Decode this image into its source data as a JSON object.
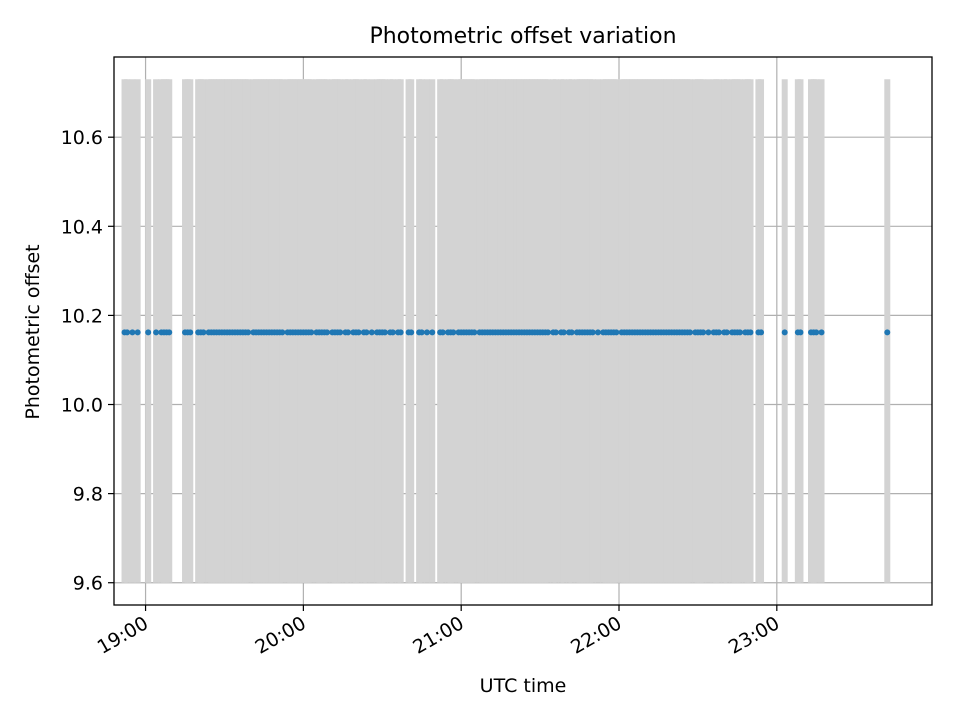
{
  "chart_data": {
    "type": "scatter",
    "title": "Photometric offset variation",
    "xlabel": "UTC time",
    "ylabel": "Photometric offset",
    "x_tick_labels": [
      "19:00",
      "20:00",
      "21:00",
      "22:00",
      "23:00"
    ],
    "x_tick_values": [
      "19:00",
      "20:00",
      "21:00",
      "22:00",
      "23:00"
    ],
    "y_tick_labels": [
      "9.6",
      "9.8",
      "10.0",
      "10.2",
      "10.4",
      "10.6"
    ],
    "y_tick_values": [
      9.6,
      9.8,
      10.0,
      10.2,
      10.4,
      10.6
    ],
    "xlim": [
      "18:48",
      "23:59"
    ],
    "ylim": [
      9.55,
      10.78
    ],
    "grid": true,
    "colors": {
      "points": "#1f77b4",
      "error_bars": "#d3d3d3",
      "grid": "#b0b0b0"
    },
    "series": [
      {
        "x": [
          "18:52",
          "18:53",
          "18:55",
          "18:57",
          "19:01",
          "19:04",
          "19:06",
          "19:07",
          "19:08",
          "19:09",
          "19:15",
          "19:16",
          "19:17",
          "19:20",
          "19:21",
          "19:22",
          "19:24",
          "19:25",
          "19:26",
          "19:27",
          "19:28",
          "19:29",
          "19:30",
          "19:31",
          "19:32",
          "19:33",
          "19:34",
          "19:35",
          "19:36",
          "19:37",
          "19:38",
          "19:39",
          "19:41",
          "19:42",
          "19:43",
          "19:44",
          "19:45",
          "19:46",
          "19:47",
          "19:48",
          "19:49",
          "19:50",
          "19:51",
          "19:52",
          "19:54",
          "19:55",
          "19:56",
          "19:57",
          "19:58",
          "19:59",
          "20:00",
          "20:01",
          "20:02",
          "20:03",
          "20:05",
          "20:06",
          "20:07",
          "20:08",
          "20:09",
          "20:11",
          "20:12",
          "20:13",
          "20:14",
          "20:16",
          "20:17",
          "20:19",
          "20:20",
          "20:21",
          "20:23",
          "20:24",
          "20:26",
          "20:28",
          "20:29",
          "20:30",
          "20:31",
          "20:33",
          "20:34",
          "20:36",
          "20:37",
          "20:40",
          "20:41",
          "20:44",
          "20:45",
          "20:47",
          "20:49",
          "20:52",
          "20:53",
          "20:55",
          "20:56",
          "20:57",
          "20:59",
          "21:00",
          "21:01",
          "21:02",
          "21:03",
          "21:04",
          "21:05",
          "21:07",
          "21:08",
          "21:09",
          "21:10",
          "21:11",
          "21:12",
          "21:13",
          "21:14",
          "21:15",
          "21:16",
          "21:17",
          "21:18",
          "21:19",
          "21:20",
          "21:21",
          "21:22",
          "21:23",
          "21:24",
          "21:25",
          "21:26",
          "21:27",
          "21:28",
          "21:29",
          "21:30",
          "21:31",
          "21:32",
          "21:33",
          "21:35",
          "21:36",
          "21:38",
          "21:39",
          "21:41",
          "21:42",
          "21:44",
          "21:45",
          "21:46",
          "21:47",
          "21:48",
          "21:49",
          "21:50",
          "21:52",
          "21:54",
          "21:55",
          "21:56",
          "21:57",
          "21:58",
          "21:59",
          "22:01",
          "22:02",
          "22:03",
          "22:04",
          "22:05",
          "22:06",
          "22:07",
          "22:08",
          "22:09",
          "22:10",
          "22:11",
          "22:12",
          "22:13",
          "22:14",
          "22:15",
          "22:16",
          "22:17",
          "22:18",
          "22:19",
          "22:20",
          "22:21",
          "22:22",
          "22:23",
          "22:24",
          "22:25",
          "22:26",
          "22:27",
          "22:29",
          "22:30",
          "22:31",
          "22:32",
          "22:34",
          "22:36",
          "22:37",
          "22:38",
          "22:40",
          "22:41",
          "22:43",
          "22:44",
          "22:45",
          "22:46",
          "22:48",
          "22:49",
          "22:50",
          "22:53",
          "22:54",
          "23:03",
          "23:08",
          "23:09",
          "23:13",
          "23:14",
          "23:15",
          "23:17",
          "23:42"
        ],
        "y": 10.162,
        "error_low": 9.6,
        "error_high": 10.73
      }
    ]
  }
}
